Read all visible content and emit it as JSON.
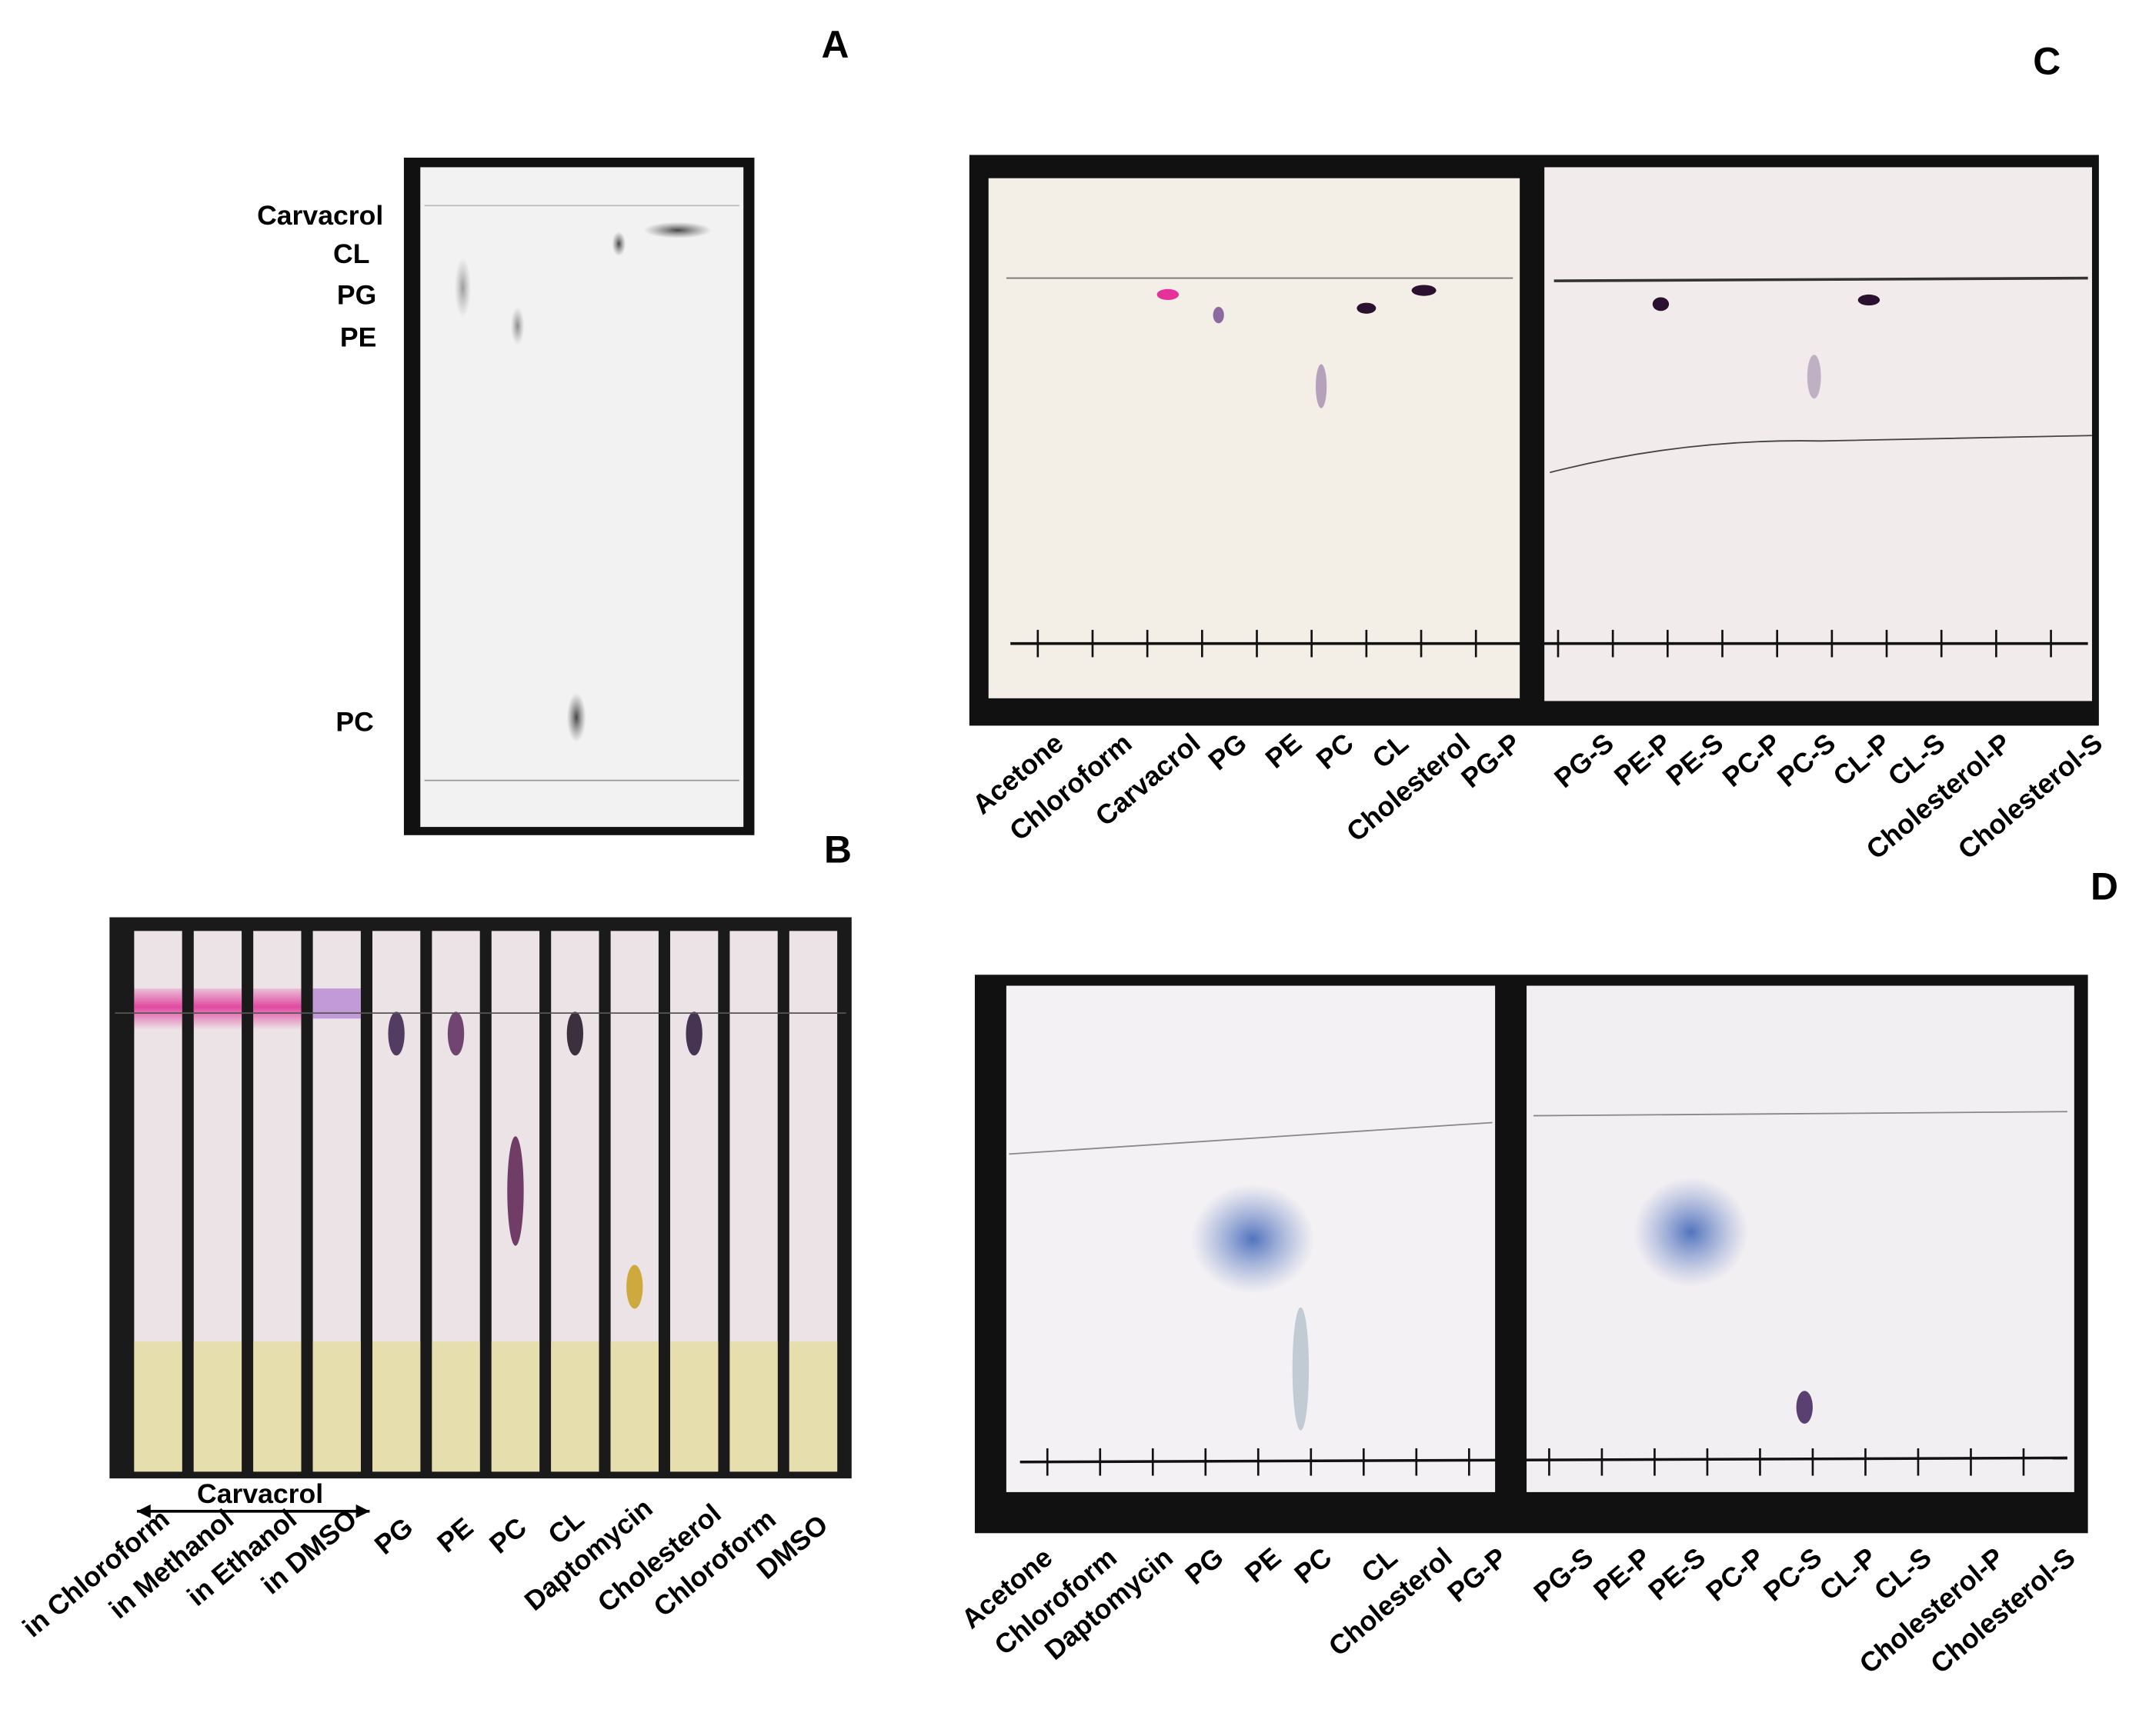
{
  "panels": [
    {
      "letter": "A",
      "spot_labels": [
        "Carvacrol",
        "CL",
        "PG",
        "PE",
        "PC"
      ]
    },
    {
      "letter": "B",
      "group_label": "Carvacrol",
      "lane_labels": [
        "in Chloroform",
        "in Methanol",
        "in Ethanol",
        "in DMSO",
        "PG",
        "PE",
        "PC",
        "CL",
        "Daptomycin",
        "Cholesterol",
        "Chloroform",
        "DMSO"
      ]
    },
    {
      "letter": "C",
      "lane_labels": [
        "Acetone",
        "Chloroform",
        "Carvacrol",
        "PG",
        "PE",
        "PC",
        "CL",
        "Cholesterol",
        "PG-P",
        "PG-S",
        "PE-P",
        "PE-S",
        "PC-P",
        "PC-S",
        "CL-P",
        "CL-S",
        "Cholesterol-P",
        "Cholesterol-S"
      ]
    },
    {
      "letter": "D",
      "lane_labels": [
        "Acetone",
        "Chloroform",
        "Daptomycin",
        "PG",
        "PE",
        "PC",
        "CL",
        "Cholesterol",
        "PG-P",
        "PG-S",
        "PE-P",
        "PE-S",
        "PC-P",
        "PC-S",
        "CL-P",
        "CL-S",
        "Cholesterol-P",
        "Cholesterol-S"
      ]
    }
  ]
}
